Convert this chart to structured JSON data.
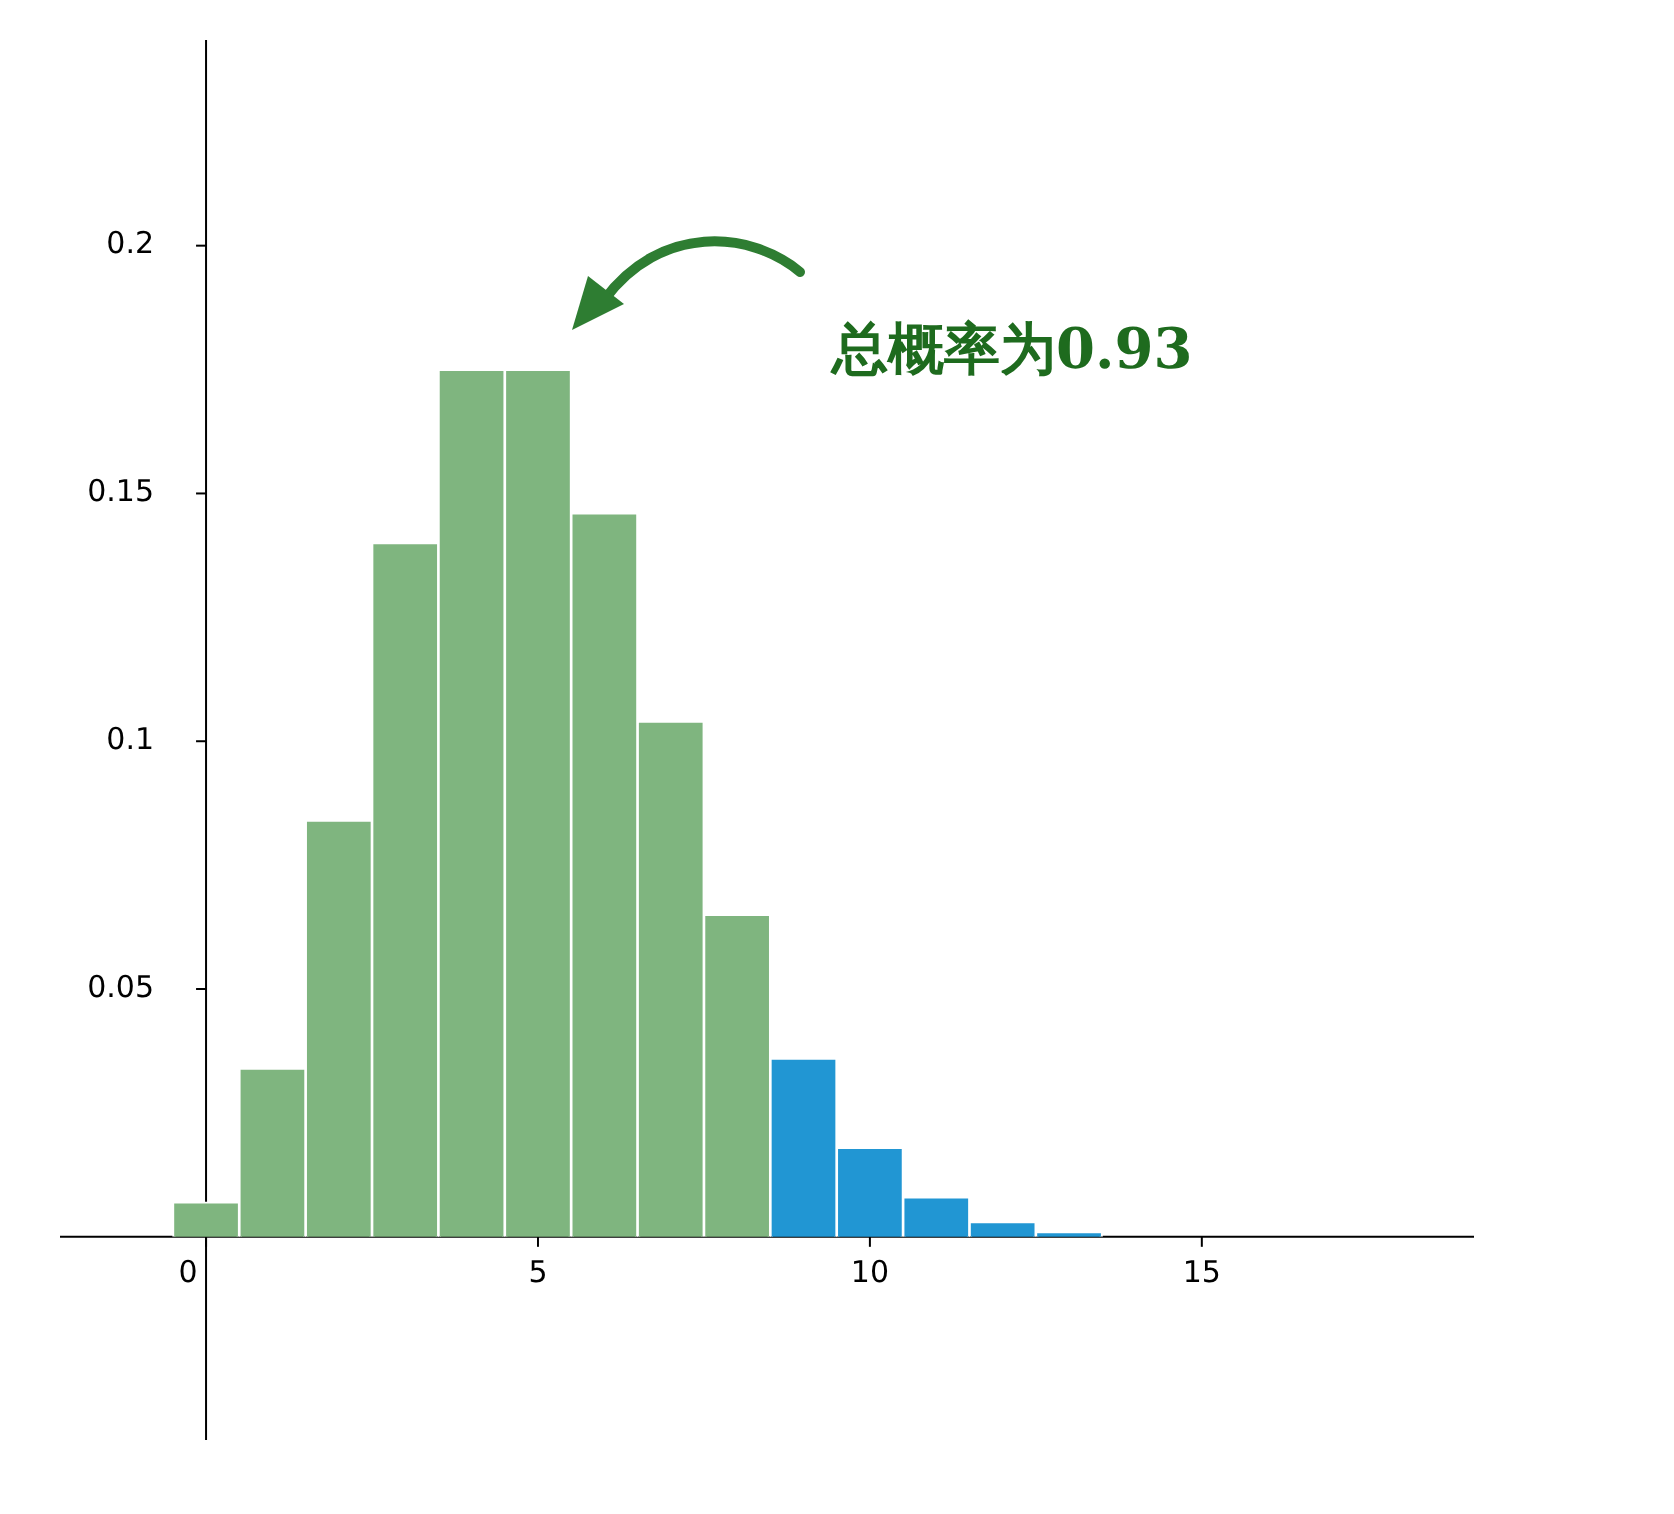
{
  "chart_data": {
    "type": "histogram",
    "bins": [
      -0.5,
      0.5,
      1.5,
      2.5,
      3.5,
      4.5,
      5.5,
      6.5,
      7.5,
      8.5,
      9.5,
      10.5,
      11.5,
      12.5,
      13.5,
      14.5,
      15.5,
      16.5,
      17.5,
      18.5
    ],
    "values": [
      0.007,
      0.034,
      0.084,
      0.14,
      0.175,
      0.175,
      0.146,
      0.104,
      0.065,
      0.036,
      0.018,
      0.008,
      0.003,
      0.001,
      0,
      0,
      0,
      0,
      0
    ],
    "colors": [
      "#7fb57f",
      "#7fb57f",
      "#7fb57f",
      "#7fb57f",
      "#7fb57f",
      "#7fb57f",
      "#7fb57f",
      "#7fb57f",
      "#7fb57f",
      "#2196d3",
      "#2196d3",
      "#2196d3",
      "#2196d3",
      "#2196d3",
      "#2196d3",
      "#2196d3",
      "#2196d3",
      "#2196d3",
      "#2196d3"
    ],
    "xlim": [
      -2.2,
      19.1
    ],
    "ylim": [
      -0.041,
      0.2415
    ],
    "xticks": [
      0,
      5,
      10,
      15
    ],
    "yticks": [
      0.05,
      0.1,
      0.15,
      0.2
    ],
    "grid": false,
    "legend": false,
    "annotations": [
      "总概率为0.93"
    ]
  }
}
